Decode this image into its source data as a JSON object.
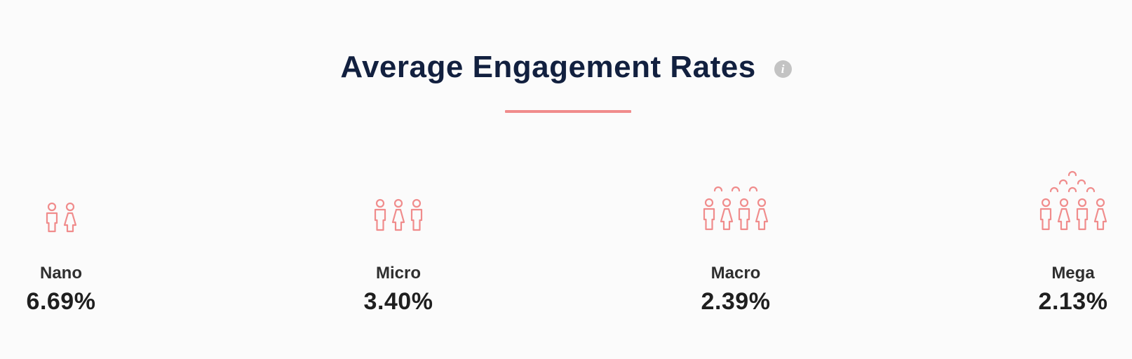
{
  "header": {
    "title": "Average Engagement Rates",
    "info_icon_glyph": "i",
    "info_icon_name": "info-icon"
  },
  "tiers": [
    {
      "name": "Nano",
      "value": "6.69%",
      "icon": "two-people-icon"
    },
    {
      "name": "Micro",
      "value": "3.40%",
      "icon": "three-people-icon"
    },
    {
      "name": "Macro",
      "value": "2.39%",
      "icon": "small-crowd-icon"
    },
    {
      "name": "Mega",
      "value": "2.13%",
      "icon": "large-crowd-icon"
    }
  ],
  "colors": {
    "title": "#12203f",
    "accent": "#f08c8c",
    "icon_stroke": "#f08c8c",
    "info_icon": "#c3c3c3",
    "label": "#2f2f2f",
    "value": "#1f1f1f",
    "background": "#fbfbfb"
  }
}
